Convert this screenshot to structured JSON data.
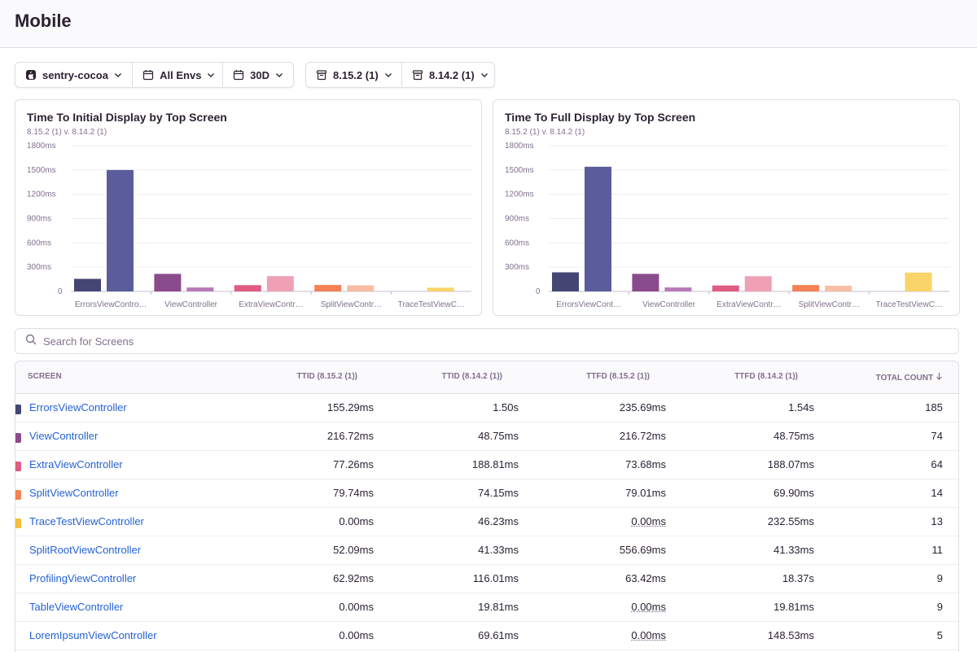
{
  "page": {
    "title": "Mobile"
  },
  "filters": {
    "project": "sentry-cocoa",
    "environment": "All Envs",
    "period": "30D",
    "release_primary": "8.15.2 (1)",
    "release_secondary": "8.14.2 (1)"
  },
  "colors": {
    "ErrorsViewController": [
      "#444674",
      "#5b5c9b"
    ],
    "ViewController": [
      "#8a4b8c",
      "#b779b8"
    ],
    "ExtraViewController": [
      "#e05c83",
      "#eea0b5"
    ],
    "SplitViewController": [
      "#f58254",
      "#f8bda2"
    ],
    "TraceTestViewController": [
      "#f5bc3e",
      "#f9d469"
    ]
  },
  "chart_data": [
    {
      "type": "bar",
      "title": "Time To Initial Display by Top Screen",
      "subtitle": "8.15.2 (1) v. 8.14.2 (1)",
      "categories": [
        "ErrorsViewContro…",
        "ViewController",
        "ExtraViewContr…",
        "SplitViewContr…",
        "TraceTestViewC…"
      ],
      "series": [
        {
          "name": "8.15.2 (1)",
          "values": [
            155.29,
            216.72,
            77.26,
            79.74,
            0
          ]
        },
        {
          "name": "8.14.2 (1)",
          "values": [
            1500,
            48.75,
            188.81,
            74.15,
            46.23
          ]
        }
      ],
      "yticks": [
        "0",
        "300ms",
        "600ms",
        "900ms",
        "1200ms",
        "1500ms",
        "1800ms"
      ],
      "ylim": [
        0,
        1800
      ]
    },
    {
      "type": "bar",
      "title": "Time To Full Display by Top Screen",
      "subtitle": "8.15.2 (1) v. 8.14.2 (1)",
      "categories": [
        "ErrorsViewCont…",
        "ViewController",
        "ExtraViewContr…",
        "SplitViewContr…",
        "TraceTestViewC…"
      ],
      "series": [
        {
          "name": "8.15.2 (1)",
          "values": [
            235.69,
            216.72,
            73.68,
            79.01,
            0
          ]
        },
        {
          "name": "8.14.2 (1)",
          "values": [
            1540,
            48.75,
            188.07,
            69.9,
            232.55
          ]
        }
      ],
      "yticks": [
        "0",
        "300ms",
        "600ms",
        "900ms",
        "1200ms",
        "1500ms",
        "1800ms"
      ],
      "ylim": [
        0,
        1800
      ]
    }
  ],
  "search": {
    "placeholder": "Search for Screens"
  },
  "table": {
    "headers": {
      "screen": "SCREEN",
      "ttid_a": "TTID (8.15.2 (1))",
      "ttid_b": "TTID (8.14.2 (1))",
      "ttfd_a": "TTFD (8.15.2 (1))",
      "ttfd_b": "TTFD (8.14.2 (1))",
      "count": "TOTAL COUNT"
    },
    "rows": [
      {
        "screen": "ErrorsViewController",
        "swatch": "#444674",
        "ttid_a": "155.29ms",
        "ttid_b": "1.50s",
        "ttfd_a": "235.69ms",
        "ttfd_b": "1.54s",
        "count": "185"
      },
      {
        "screen": "ViewController",
        "swatch": "#8a4b8c",
        "ttid_a": "216.72ms",
        "ttid_b": "48.75ms",
        "ttfd_a": "216.72ms",
        "ttfd_b": "48.75ms",
        "count": "74"
      },
      {
        "screen": "ExtraViewController",
        "swatch": "#e05c83",
        "ttid_a": "77.26ms",
        "ttid_b": "188.81ms",
        "ttfd_a": "73.68ms",
        "ttfd_b": "188.07ms",
        "count": "64"
      },
      {
        "screen": "SplitViewController",
        "swatch": "#f58254",
        "ttid_a": "79.74ms",
        "ttid_b": "74.15ms",
        "ttfd_a": "79.01ms",
        "ttfd_b": "69.90ms",
        "count": "14"
      },
      {
        "screen": "TraceTestViewController",
        "swatch": "#f5bc3e",
        "ttid_a": "0.00ms",
        "ttid_b": "46.23ms",
        "ttfd_a": "0.00ms",
        "ttfd_a_dotted": true,
        "ttfd_b": "232.55ms",
        "count": "13"
      },
      {
        "screen": "SplitRootViewController",
        "ttid_a": "52.09ms",
        "ttid_b": "41.33ms",
        "ttfd_a": "556.69ms",
        "ttfd_b": "41.33ms",
        "count": "11"
      },
      {
        "screen": "ProfilingViewController",
        "ttid_a": "62.92ms",
        "ttid_b": "116.01ms",
        "ttfd_a": "63.42ms",
        "ttfd_b": "18.37s",
        "count": "9"
      },
      {
        "screen": "TableViewController",
        "ttid_a": "0.00ms",
        "ttid_b": "19.81ms",
        "ttfd_a": "0.00ms",
        "ttfd_a_dotted": true,
        "ttfd_b": "19.81ms",
        "count": "9"
      },
      {
        "screen": "LoremIpsumViewController",
        "ttid_a": "0.00ms",
        "ttid_b": "69.61ms",
        "ttfd_a": "0.00ms",
        "ttfd_a_dotted": true,
        "ttfd_b": "148.53ms",
        "count": "5"
      }
    ]
  }
}
